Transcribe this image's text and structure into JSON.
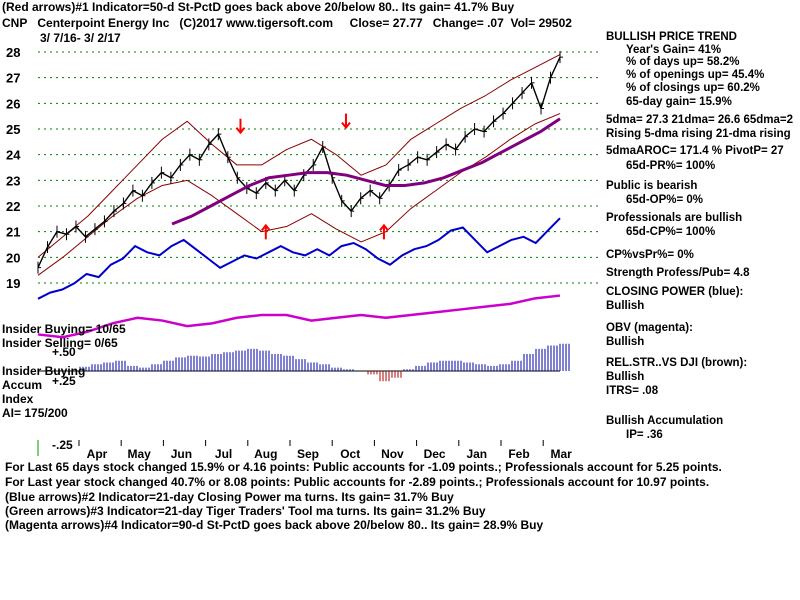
{
  "header": {
    "line1": "(Red arrows)#1 Indicator=50-d St-PctD goes back above 20/below 80.. Its gain= 41.7% Buy",
    "ticker": "CNP",
    "company": "Centerpoint Energy Inc",
    "copyright": "(C)2017 www.tigersoft.com",
    "close": "Close= 27.77",
    "change": "Change= .07",
    "vol": "Vol= 29502",
    "date_range": "3/ 7/16- 3/ 2/17"
  },
  "chart_data": {
    "type": "line",
    "title": "CNP Centerpoint Energy Inc",
    "ylim": [
      19,
      28
    ],
    "y_ticks": [
      "28",
      "27",
      "26",
      "25",
      "24",
      "23",
      "22",
      "21",
      "20",
      "19"
    ],
    "x_ticks": [
      "Apr",
      "May",
      "Jun",
      "Jul",
      "Aug",
      "Sep",
      "Oct",
      "Nov",
      "Dec",
      "Jan",
      "Feb",
      "Mar"
    ],
    "price_close": [
      19.6,
      20.4,
      21.0,
      20.9,
      21.2,
      20.8,
      21.1,
      21.4,
      21.8,
      22.1,
      22.6,
      22.4,
      22.9,
      23.3,
      23.1,
      23.6,
      24.0,
      23.8,
      24.4,
      24.8,
      23.9,
      23.1,
      22.7,
      22.5,
      22.9,
      22.6,
      23.0,
      22.6,
      23.2,
      23.6,
      24.3,
      23.1,
      22.2,
      21.8,
      22.3,
      22.6,
      22.3,
      22.8,
      23.4,
      23.6,
      23.9,
      23.8,
      24.1,
      24.4,
      24.2,
      24.7,
      25.0,
      24.9,
      25.3,
      25.6,
      26.0,
      26.4,
      26.8,
      25.8,
      27.0,
      27.8
    ],
    "closing_power": [
      19.7,
      19.9,
      20.0,
      20.2,
      20.5,
      20.4,
      20.8,
      21.0,
      21.4,
      21.2,
      21.1,
      21.4,
      21.6,
      21.3,
      21.0,
      20.7,
      20.9,
      21.1,
      21.0,
      21.2,
      21.4,
      21.2,
      21.1,
      21.3,
      21.1,
      21.4,
      21.5,
      21.3,
      21.0,
      20.8,
      21.1,
      21.3,
      21.4,
      21.6,
      21.9,
      22.0,
      21.6,
      21.2,
      21.4,
      21.6,
      21.7,
      21.5,
      21.9,
      22.3
    ],
    "obv": [
      18.2,
      18.1,
      18.3,
      18.6,
      18.8,
      18.7,
      18.5,
      18.6,
      18.8,
      18.9,
      18.9,
      18.7,
      18.8,
      18.9,
      18.8,
      18.9,
      19.0,
      19.1,
      19.2,
      19.3,
      19.5,
      19.6
    ],
    "ma65": [
      21.3,
      21.6,
      22.0,
      22.4,
      22.8,
      23.1,
      23.2,
      23.3,
      23.3,
      23.2,
      23.0,
      22.8,
      22.8,
      22.9,
      23.1,
      23.4,
      23.7,
      24.1,
      24.5,
      24.9,
      25.4
    ],
    "upper_band": [
      20.0,
      20.8,
      21.6,
      22.6,
      23.6,
      24.6,
      25.3,
      24.4,
      23.6,
      23.6,
      24.2,
      24.6,
      24.0,
      23.2,
      23.6,
      24.6,
      25.2,
      25.8,
      26.3,
      26.9,
      27.4,
      27.9
    ],
    "lower_band": [
      19.3,
      20.0,
      20.8,
      21.6,
      22.3,
      22.8,
      23.0,
      22.4,
      21.7,
      21.0,
      21.2,
      21.7,
      21.1,
      20.6,
      21.0,
      21.9,
      22.6,
      23.3,
      23.9,
      24.6,
      25.2,
      25.6
    ],
    "red_arrows": [
      {
        "dir": "down",
        "month_index": 3.4,
        "value": 24.7
      },
      {
        "dir": "up",
        "month_index": 4.0,
        "value": 21.4
      },
      {
        "dir": "down",
        "month_index": 5.9,
        "value": 24.9
      },
      {
        "dir": "up",
        "month_index": 6.8,
        "value": 21.4
      }
    ],
    "ai_values": [
      0.05,
      0.08,
      0.1,
      0.12,
      0.06,
      0.04,
      0.08,
      0.12,
      0.16,
      0.18,
      0.17,
      0.2,
      0.22,
      0.24,
      0.26,
      0.24,
      0.2,
      0.18,
      0.14,
      0.1,
      0.08,
      0.04,
      0.02,
      0.0,
      -0.04,
      -0.12,
      -0.08,
      0.02,
      0.06,
      0.1,
      0.12,
      0.12,
      0.1,
      0.08,
      0.06,
      0.08,
      0.12,
      0.2,
      0.26,
      0.3,
      0.32
    ]
  },
  "lower_panel": {
    "insider_buying": "Insider Buying= 10/65",
    "insider_selling": "Insider Selling= 0/65",
    "plus50": "+.50",
    "insider_buying2": "Insider Buying",
    "accum": "Accum",
    "plus25": "+.25",
    "index": "Index",
    "ai": "AI= 175/200",
    "minus25": "-.25"
  },
  "right_panel": {
    "trend_title": "BULLISH PRICE TREND",
    "years_gain": "Year's Gain= 41%",
    "days_up": "% of days up= 58.2%",
    "openings_up": "% of openings up= 45.4%",
    "closings_up": "% of closings up= 60.2%",
    "gain65": "65-day gain= 15.9%",
    "dma_line": "5dma= 27.3 21dma= 26.6 65dma=2",
    "rising_line": "Rising 5-dma rising 21-dma rising",
    "aroc_line": "5dmaAROC= 171.4 %  PivotP= 27",
    "pr65": "65d-PR%= 100%",
    "public": "Public is bearish",
    "op65": "65d-OP%= 0%",
    "pros": "Professionals are bullish",
    "cp65": "65d-CP%= 100%",
    "cpvspr": "CP%vsPr%=  0%",
    "strength": "Strength Profess/Pub= 4.8",
    "closing_power": "CLOSING POWER (blue):",
    "cp_state": "Bullish",
    "obv": "OBV (magenta):",
    "obv_state": "Bullish",
    "relstr": "REL.STR..VS DJI (brown):",
    "relstr_state": "Bullish",
    "itrs": "ITRS= .08",
    "accum_title": "Bullish Accumulation",
    "ip": "IP=  .36"
  },
  "footer": {
    "line1": "For Last 65 days stock changed  15.9% or  4.16 points:  Public accounts for -1.09 points.;  Professionals account for  5.25 points.",
    "line2": "For Last year stock changed  40.7% or  8.08 points:  Public accounts for -2.89 points.;  Professionals account for  10.97 points.",
    "line3": "(Blue arrows)#2 Indicator=21-day Closing Power ma turns. Its gain= 31.7% Buy",
    "line4": "(Green arrows)#3 Indicator=21-day Tiger Traders' Tool ma turns. Its gain= 31.2% Buy",
    "line5": "(Magenta arrows)#4 Indicator=90-d St-PctD goes back above 20/below 80.. Its gain= 28.9% Buy"
  },
  "colors": {
    "price": "#000000",
    "band": "#8b0000",
    "ma": "#800080",
    "closing_power": "#0000cc",
    "obv": "#cc00cc",
    "arrow": "#ff0000",
    "grid": "#008000",
    "accum_pos": "#0000aa",
    "accum_neg": "#aa0000"
  }
}
